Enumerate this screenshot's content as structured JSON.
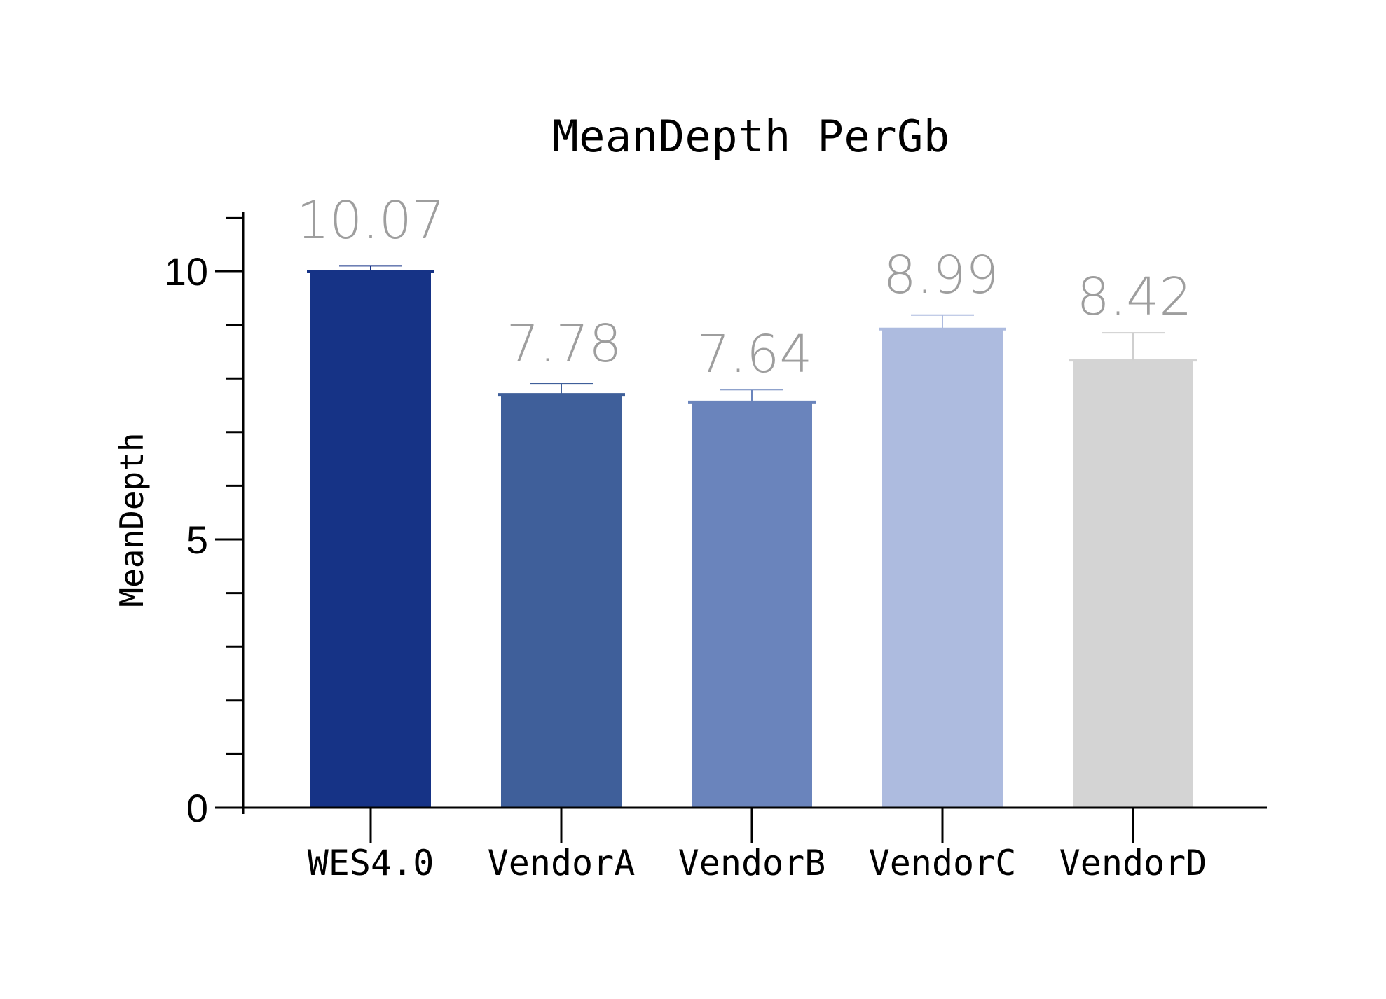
{
  "chart_data": {
    "type": "bar",
    "title": "MeanDepth PerGb",
    "xlabel": "",
    "ylabel": "MeanDepth",
    "categories": [
      "WES4.0",
      "VendorA",
      "VendorB",
      "VendorC",
      "VendorD"
    ],
    "values": [
      10.07,
      7.78,
      7.64,
      8.99,
      8.42
    ],
    "data_labels": [
      "10.07",
      "7.78",
      "7.64",
      "8.99",
      "8.42"
    ],
    "bar_heights_observed": [
      10.0,
      7.7,
      7.56,
      8.92,
      8.34
    ],
    "error_bar_upper": [
      10.1,
      7.91,
      7.79,
      9.18,
      8.85
    ],
    "colors": [
      "#163386",
      "#3f5f9a",
      "#6a84bc",
      "#adbbdf",
      "#d4d4d4"
    ],
    "ylim": [
      0,
      11
    ],
    "yticks_major": [
      0,
      5,
      10
    ],
    "yticks_minor_step": 1,
    "grid": false,
    "legend": null
  },
  "labels": {
    "title": "MeanDepth PerGb",
    "ylabel": "MeanDepth",
    "yticks": [
      "0",
      "5",
      "10"
    ],
    "categories": [
      "WES4.0",
      "VendorA",
      "VendorB",
      "VendorC",
      "VendorD"
    ],
    "data_labels": [
      "10.07",
      "7.78",
      "7.64",
      "8.99",
      "8.42"
    ]
  },
  "style": {
    "data_label_color": "#9e9e9e",
    "axis_color": "#000000"
  }
}
